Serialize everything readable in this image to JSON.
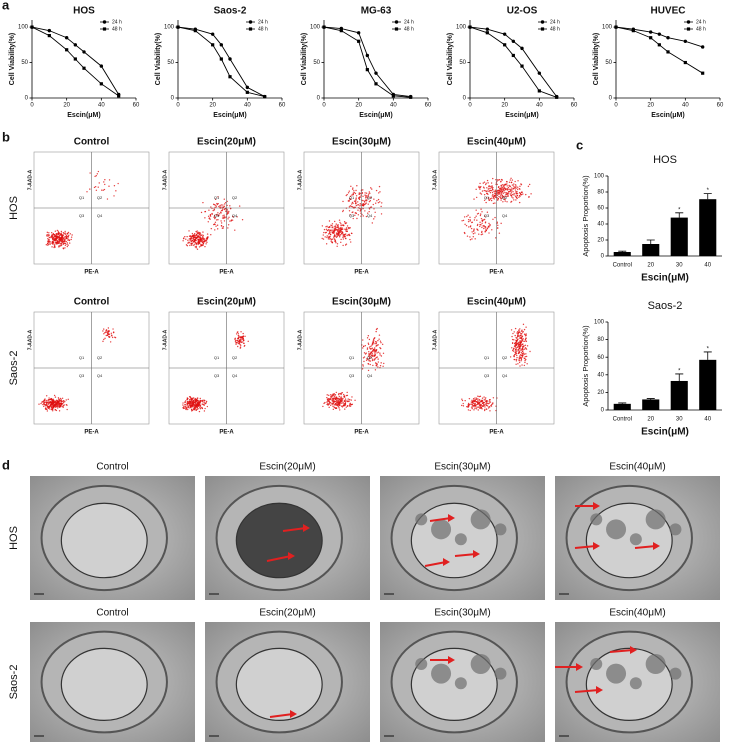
{
  "panel_labels": [
    "a",
    "b",
    "c",
    "d"
  ],
  "chart_data": [
    {
      "type": "line",
      "title": "HOS",
      "x_label": "Escin(μM)",
      "y_label": "Cell Viability(%)",
      "x": [
        0,
        10,
        20,
        25,
        30,
        40,
        50
      ],
      "series": [
        {
          "name": "24 h",
          "color": "#000000",
          "marker": "circle",
          "values": [
            100,
            95,
            85,
            75,
            65,
            45,
            5
          ]
        },
        {
          "name": "48 h",
          "color": "#000000",
          "marker": "square",
          "values": [
            100,
            88,
            68,
            55,
            42,
            20,
            3
          ]
        }
      ],
      "xlim": [
        0,
        60
      ],
      "xticks": [
        0,
        20,
        40,
        60
      ],
      "ylim": [
        0,
        110
      ],
      "yticks": [
        0,
        50,
        100
      ],
      "legend": "upper right"
    },
    {
      "type": "line",
      "title": "Saos-2",
      "x_label": "Escin(μM)",
      "y_label": "Cell Viability(%)",
      "x": [
        0,
        10,
        20,
        25,
        30,
        40,
        50
      ],
      "series": [
        {
          "name": "24 h",
          "color": "#000000",
          "marker": "circle",
          "values": [
            100,
            97,
            90,
            75,
            55,
            15,
            2
          ]
        },
        {
          "name": "48 h",
          "color": "#000000",
          "marker": "square",
          "values": [
            100,
            95,
            75,
            55,
            30,
            8,
            2
          ]
        }
      ],
      "xlim": [
        0,
        60
      ],
      "xticks": [
        0,
        20,
        40,
        60
      ],
      "ylim": [
        0,
        110
      ],
      "yticks": [
        0,
        50,
        100
      ],
      "legend": "upper right"
    },
    {
      "type": "line",
      "title": "MG-63",
      "x_label": "Escin(μM)",
      "y_label": "Cell Viability(%)",
      "x": [
        0,
        10,
        20,
        25,
        30,
        40,
        50
      ],
      "series": [
        {
          "name": "24 h",
          "color": "#000000",
          "marker": "circle",
          "values": [
            100,
            98,
            92,
            60,
            35,
            5,
            2
          ]
        },
        {
          "name": "48 h",
          "color": "#000000",
          "marker": "square",
          "values": [
            100,
            95,
            80,
            40,
            20,
            3,
            1
          ]
        }
      ],
      "xlim": [
        0,
        60
      ],
      "xticks": [
        0,
        20,
        40,
        60
      ],
      "ylim": [
        0,
        110
      ],
      "yticks": [
        0,
        50,
        100
      ],
      "legend": "upper right"
    },
    {
      "type": "line",
      "title": "U2-OS",
      "x_label": "Escin(μM)",
      "y_label": "Cell Viability(%)",
      "x": [
        0,
        10,
        20,
        25,
        30,
        40,
        50
      ],
      "series": [
        {
          "name": "24 h",
          "color": "#000000",
          "marker": "circle",
          "values": [
            100,
            97,
            90,
            80,
            70,
            35,
            2
          ]
        },
        {
          "name": "48 h",
          "color": "#000000",
          "marker": "square",
          "values": [
            100,
            92,
            75,
            60,
            45,
            10,
            1
          ]
        }
      ],
      "xlim": [
        0,
        60
      ],
      "xticks": [
        0,
        20,
        40,
        60
      ],
      "ylim": [
        0,
        110
      ],
      "yticks": [
        0,
        50,
        100
      ],
      "legend": "upper right"
    },
    {
      "type": "line",
      "title": "HUVEC",
      "x_label": "Escin(μM)",
      "y_label": "Cell Viability(%)",
      "x": [
        0,
        10,
        20,
        25,
        30,
        40,
        50
      ],
      "series": [
        {
          "name": "24 h",
          "color": "#000000",
          "marker": "circle",
          "values": [
            100,
            97,
            93,
            90,
            85,
            80,
            72
          ]
        },
        {
          "name": "48 h",
          "color": "#000000",
          "marker": "square",
          "values": [
            100,
            95,
            85,
            75,
            65,
            50,
            35
          ]
        }
      ],
      "xlim": [
        0,
        60
      ],
      "xticks": [
        0,
        20,
        40,
        60
      ],
      "ylim": [
        0,
        110
      ],
      "yticks": [
        0,
        50,
        100
      ],
      "legend": "upper right"
    },
    {
      "type": "bar",
      "title": "HOS",
      "x_label": "Escin(μM)",
      "y_label": "Apoptosis Proportion(%)",
      "categories": [
        "Control",
        "20",
        "30",
        "40"
      ],
      "values": [
        5,
        15,
        48,
        71
      ],
      "errors": [
        1,
        5,
        6,
        7
      ],
      "significance": [
        null,
        null,
        "*",
        "*"
      ],
      "color": "#000000",
      "ylim": [
        0,
        100
      ],
      "yticks": [
        0,
        20,
        40,
        60,
        80,
        100
      ]
    },
    {
      "type": "bar",
      "title": "Saos-2",
      "x_label": "Escin(μM)",
      "y_label": "Apoptosis Proportion(%)",
      "categories": [
        "Control",
        "20",
        "30",
        "40"
      ],
      "values": [
        7,
        12,
        33,
        57
      ],
      "errors": [
        1,
        1,
        8,
        9
      ],
      "significance": [
        null,
        null,
        "*",
        "*"
      ],
      "color": "#000000",
      "ylim": [
        0,
        100
      ],
      "yticks": [
        0,
        20,
        40,
        60,
        80,
        100
      ]
    }
  ],
  "flow_cytometry": {
    "column_titles": [
      "Control",
      "Escin(20μM)",
      "Escin(30μM)",
      "Escin(40μM)"
    ],
    "row_labels": [
      "HOS",
      "Saos-2"
    ],
    "quadrant_labels": [
      "Q1",
      "Q2",
      "Q3",
      "Q4"
    ],
    "x_axis": "PE-A",
    "y_axis": "7-AAD-A"
  },
  "tem_images": {
    "column_titles": [
      "Control",
      "Escin(20μM)",
      "Escin(30μM)",
      "Escin(40μM)"
    ],
    "row_labels": [
      "HOS",
      "Saos-2"
    ]
  }
}
